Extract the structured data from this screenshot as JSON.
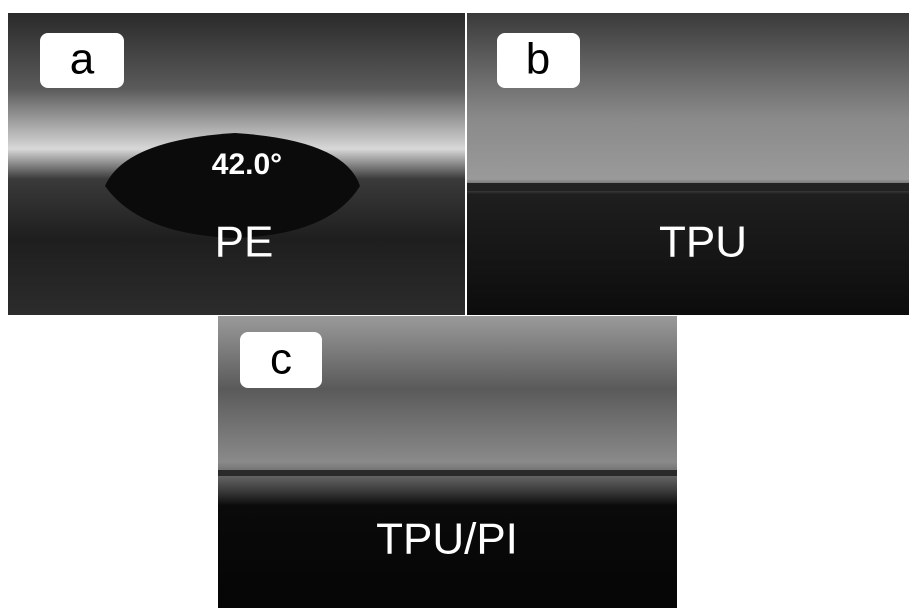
{
  "panels": [
    {
      "label": "a",
      "caption": "PE",
      "annotation": "42.0°"
    },
    {
      "label": "b",
      "caption": "TPU"
    },
    {
      "label": "c",
      "caption": "TPU/PI"
    }
  ]
}
